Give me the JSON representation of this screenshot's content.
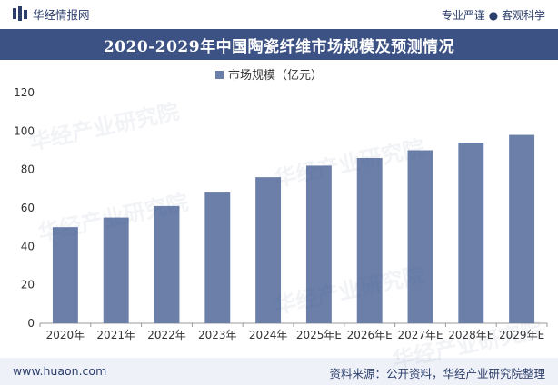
{
  "header": {
    "logo_text": "华经情报网",
    "slogan": "专业严谨 ● 客观科学"
  },
  "title": "2020-2029年中国陶瓷纤维市场规模及预测情况",
  "footer": {
    "site": "www.huaon.com",
    "source": "资料来源：公开资料，华经产业研究院整理"
  },
  "watermark": "华经产业研究院",
  "colors": {
    "bar": "#6b7fa9",
    "title_band": "#3c5285",
    "text": "#2b3d6b"
  },
  "chart_data": {
    "type": "bar",
    "categories": [
      "2020年",
      "2021年",
      "2022年",
      "2023年",
      "2024年",
      "2025年E",
      "2026年E",
      "2027年E",
      "2028年E",
      "2029年E"
    ],
    "series": [
      {
        "name": "市场规模（亿元）",
        "values": [
          50,
          55,
          61,
          68,
          76,
          82,
          86,
          90,
          94,
          98
        ]
      }
    ],
    "ylim": [
      0,
      120
    ],
    "yticks": [
      0,
      20,
      40,
      60,
      80,
      100,
      120
    ],
    "legend_position": "top-center",
    "grid": false
  }
}
